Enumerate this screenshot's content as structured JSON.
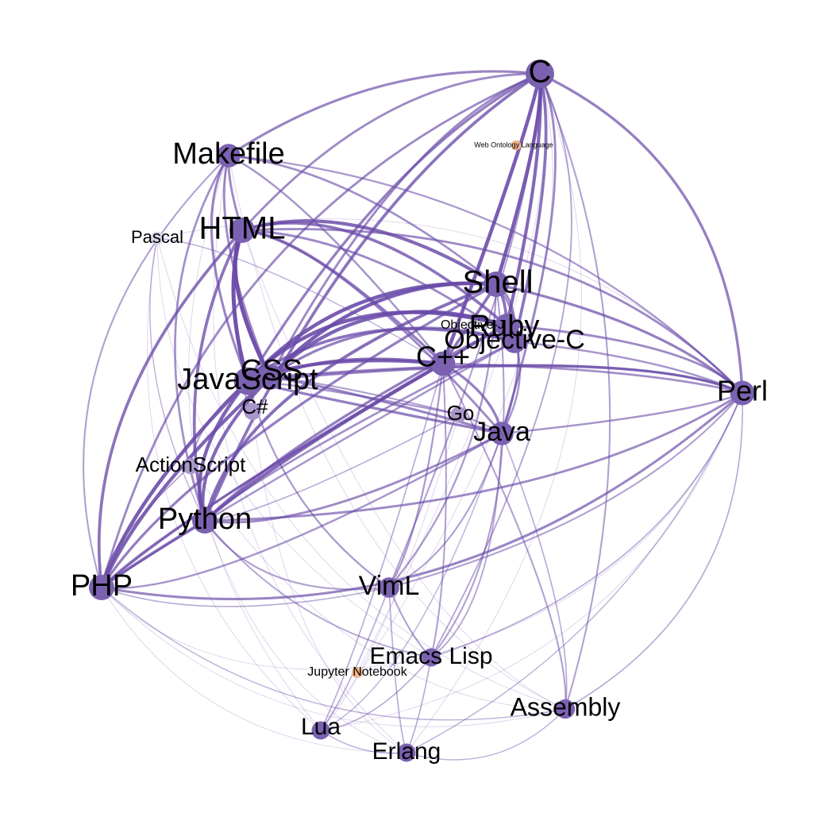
{
  "colors": {
    "edge": "#6a4aa8",
    "node": "#7b62b0",
    "node_light": "#a897c9",
    "node_faint": "#d9d2e8",
    "node_orange": "#f2b58a",
    "background": "#ffffff"
  },
  "nodes": [
    {
      "id": "C",
      "label": "C",
      "weight": 1.0,
      "tier": "main"
    },
    {
      "id": "Makefile",
      "label": "Makefile",
      "weight": 0.75,
      "tier": "main"
    },
    {
      "id": "HTML",
      "label": "HTML",
      "weight": 0.85,
      "tier": "main"
    },
    {
      "id": "Pascal",
      "label": "Pascal",
      "weight": 0.25,
      "tier": "faint"
    },
    {
      "id": "Shell",
      "label": "Shell",
      "weight": 0.85,
      "tier": "main"
    },
    {
      "id": "Ruby",
      "label": "Ruby",
      "weight": 0.75,
      "tier": "main"
    },
    {
      "id": "Objective-C",
      "label": "Objective-C",
      "weight": 0.75,
      "tier": "main"
    },
    {
      "id": "ObjectiveJ",
      "label": "Objective-J",
      "weight": 0.2,
      "tier": "faint"
    },
    {
      "id": "CPP",
      "label": "C++",
      "weight": 0.8,
      "tier": "main"
    },
    {
      "id": "CSS",
      "label": "CSS",
      "weight": 0.85,
      "tier": "main"
    },
    {
      "id": "JavaScript",
      "label": "JavaScript",
      "weight": 0.95,
      "tier": "main"
    },
    {
      "id": "Perl",
      "label": "Perl",
      "weight": 0.8,
      "tier": "main"
    },
    {
      "id": "CSharp",
      "label": "C#",
      "weight": 0.45,
      "tier": "light"
    },
    {
      "id": "Go",
      "label": "Go",
      "weight": 0.4,
      "tier": "light"
    },
    {
      "id": "Java",
      "label": "Java",
      "weight": 0.75,
      "tier": "main"
    },
    {
      "id": "ActionScript",
      "label": "ActionScript",
      "weight": 0.4,
      "tier": "light"
    },
    {
      "id": "Python",
      "label": "Python",
      "weight": 0.85,
      "tier": "main"
    },
    {
      "id": "PHP",
      "label": "PHP",
      "weight": 0.85,
      "tier": "main"
    },
    {
      "id": "VimL",
      "label": "VimL",
      "weight": 0.6,
      "tier": "main"
    },
    {
      "id": "EmacsLisp",
      "label": "Emacs Lisp",
      "weight": 0.5,
      "tier": "main"
    },
    {
      "id": "Jupyter",
      "label": "Jupyter Notebook",
      "weight": 0.15,
      "tier": "orange"
    },
    {
      "id": "WebOntology",
      "label": "Web Ontology Language",
      "weight": 0.1,
      "tier": "orange"
    },
    {
      "id": "Assembly",
      "label": "Assembly",
      "weight": 0.55,
      "tier": "main"
    },
    {
      "id": "Lua",
      "label": "Lua",
      "weight": 0.5,
      "tier": "main"
    },
    {
      "id": "Erlang",
      "label": "Erlang",
      "weight": 0.5,
      "tier": "main"
    }
  ],
  "edges": [
    [
      "C",
      "Makefile",
      0.55
    ],
    [
      "C",
      "HTML",
      0.5
    ],
    [
      "C",
      "Shell",
      0.9
    ],
    [
      "C",
      "Ruby",
      0.8
    ],
    [
      "C",
      "Objective-C",
      0.7
    ],
    [
      "C",
      "CPP",
      0.9
    ],
    [
      "C",
      "JavaScript",
      0.6
    ],
    [
      "C",
      "CSS",
      0.5
    ],
    [
      "C",
      "Perl",
      0.6
    ],
    [
      "C",
      "Python",
      0.7
    ],
    [
      "C",
      "PHP",
      0.5
    ],
    [
      "C",
      "Java",
      0.5
    ],
    [
      "C",
      "Assembly",
      0.3
    ],
    [
      "C",
      "VimL",
      0.3
    ],
    [
      "C",
      "EmacsLisp",
      0.25
    ],
    [
      "Makefile",
      "HTML",
      0.5
    ],
    [
      "Makefile",
      "CSS",
      0.5
    ],
    [
      "Makefile",
      "JavaScript",
      0.55
    ],
    [
      "Makefile",
      "Shell",
      0.45
    ],
    [
      "Makefile",
      "Python",
      0.45
    ],
    [
      "Makefile",
      "PHP",
      0.3
    ],
    [
      "Makefile",
      "Perl",
      0.35
    ],
    [
      "Makefile",
      "CPP",
      0.4
    ],
    [
      "HTML",
      "CSS",
      1.0
    ],
    [
      "HTML",
      "JavaScript",
      1.0
    ],
    [
      "HTML",
      "Shell",
      0.8
    ],
    [
      "HTML",
      "Ruby",
      0.7
    ],
    [
      "HTML",
      "Python",
      0.7
    ],
    [
      "HTML",
      "PHP",
      0.7
    ],
    [
      "HTML",
      "CPP",
      0.6
    ],
    [
      "HTML",
      "Objective-C",
      0.5
    ],
    [
      "HTML",
      "Perl",
      0.5
    ],
    [
      "HTML",
      "Java",
      0.5
    ],
    [
      "CSS",
      "JavaScript",
      1.0
    ],
    [
      "CSS",
      "Shell",
      0.9
    ],
    [
      "CSS",
      "Ruby",
      0.85
    ],
    [
      "CSS",
      "CPP",
      0.75
    ],
    [
      "CSS",
      "Objective-C",
      0.6
    ],
    [
      "CSS",
      "Python",
      0.8
    ],
    [
      "CSS",
      "PHP",
      0.85
    ],
    [
      "CSS",
      "Java",
      0.55
    ],
    [
      "CSS",
      "Perl",
      0.5
    ],
    [
      "CSS",
      "Go",
      0.3
    ],
    [
      "JavaScript",
      "Shell",
      0.9
    ],
    [
      "JavaScript",
      "Ruby",
      0.9
    ],
    [
      "JavaScript",
      "CPP",
      0.8
    ],
    [
      "JavaScript",
      "Objective-C",
      0.7
    ],
    [
      "JavaScript",
      "Python",
      0.85
    ],
    [
      "JavaScript",
      "PHP",
      0.9
    ],
    [
      "JavaScript",
      "Java",
      0.6
    ],
    [
      "JavaScript",
      "Perl",
      0.6
    ],
    [
      "JavaScript",
      "VimL",
      0.35
    ],
    [
      "JavaScript",
      "Go",
      0.35
    ],
    [
      "JavaScript",
      "CSharp",
      0.3
    ],
    [
      "Shell",
      "Ruby",
      0.7
    ],
    [
      "Shell",
      "CPP",
      0.7
    ],
    [
      "Shell",
      "Python",
      0.75
    ],
    [
      "Shell",
      "Perl",
      0.6
    ],
    [
      "Shell",
      "PHP",
      0.6
    ],
    [
      "Shell",
      "Java",
      0.45
    ],
    [
      "Shell",
      "VimL",
      0.35
    ],
    [
      "Shell",
      "EmacsLisp",
      0.3
    ],
    [
      "Shell",
      "Objective-C",
      0.5
    ],
    [
      "Ruby",
      "Python",
      0.6
    ],
    [
      "Ruby",
      "PHP",
      0.5
    ],
    [
      "Ruby",
      "Perl",
      0.5
    ],
    [
      "Ruby",
      "CPP",
      0.55
    ],
    [
      "Ruby",
      "Objective-C",
      0.5
    ],
    [
      "Objective-C",
      "Python",
      0.45
    ],
    [
      "Objective-C",
      "Perl",
      0.4
    ],
    [
      "Objective-C",
      "Java",
      0.4
    ],
    [
      "Objective-C",
      "PHP",
      0.4
    ],
    [
      "CPP",
      "Python",
      0.8
    ],
    [
      "CPP",
      "Java",
      0.6
    ],
    [
      "CPP",
      "PHP",
      0.55
    ],
    [
      "CPP",
      "Perl",
      0.45
    ],
    [
      "CPP",
      "VimL",
      0.35
    ],
    [
      "CPP",
      "Assembly",
      0.3
    ],
    [
      "CPP",
      "EmacsLisp",
      0.3
    ],
    [
      "CPP",
      "Lua",
      0.2
    ],
    [
      "Python",
      "PHP",
      0.7
    ],
    [
      "Python",
      "Perl",
      0.5
    ],
    [
      "Python",
      "Java",
      0.5
    ],
    [
      "Python",
      "VimL",
      0.3
    ],
    [
      "Python",
      "EmacsLisp",
      0.25
    ],
    [
      "PHP",
      "Perl",
      0.55
    ],
    [
      "PHP",
      "Java",
      0.4
    ],
    [
      "PHP",
      "VimL",
      0.2
    ],
    [
      "PHP",
      "Assembly",
      0.15
    ],
    [
      "Perl",
      "Java",
      0.4
    ],
    [
      "Perl",
      "VimL",
      0.3
    ],
    [
      "Perl",
      "EmacsLisp",
      0.2
    ],
    [
      "Perl",
      "Assembly",
      0.2
    ],
    [
      "Perl",
      "Erlang",
      0.15
    ],
    [
      "Java",
      "VimL",
      0.3
    ],
    [
      "Java",
      "EmacsLisp",
      0.25
    ],
    [
      "Java",
      "Go",
      0.3
    ],
    [
      "Java",
      "Assembly",
      0.2
    ],
    [
      "Java",
      "Lua",
      0.15
    ],
    [
      "VimL",
      "EmacsLisp",
      0.3
    ],
    [
      "VimL",
      "Lua",
      0.2
    ],
    [
      "VimL",
      "Erlang",
      0.2
    ],
    [
      "EmacsLisp",
      "Erlang",
      0.2
    ],
    [
      "EmacsLisp",
      "Lua",
      0.2
    ],
    [
      "Assembly",
      "Erlang",
      0.15
    ],
    [
      "Lua",
      "Erlang",
      0.15
    ],
    [
      "ActionScript",
      "JavaScript",
      0.3
    ],
    [
      "ActionScript",
      "PHP",
      0.25
    ],
    [
      "Pascal",
      "Python",
      0.15
    ],
    [
      "Pascal",
      "CPP",
      0.15
    ],
    [
      "Go",
      "Python",
      0.2
    ]
  ]
}
